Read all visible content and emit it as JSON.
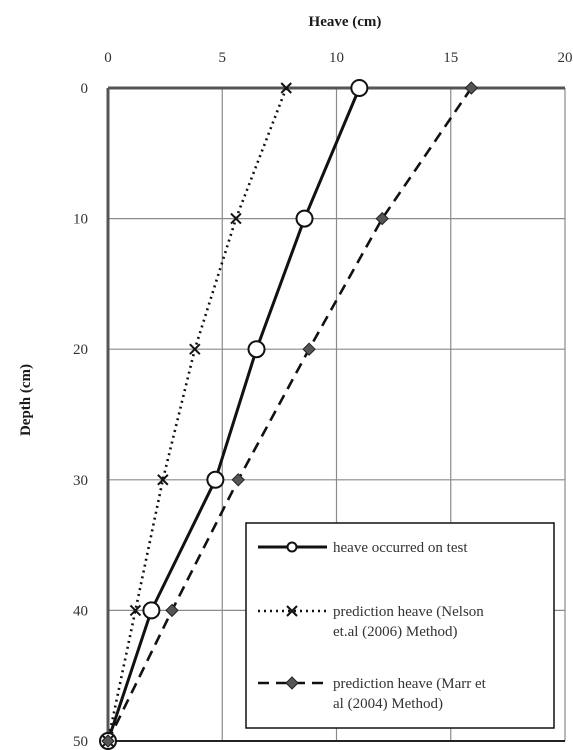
{
  "chart_data": {
    "type": "line",
    "xlabel": "Heave (cm)",
    "ylabel": "Depth (cm)",
    "xlim": [
      0,
      20
    ],
    "ylim": [
      0,
      50
    ],
    "x_axis_position": "top",
    "y_axis_inverted": true,
    "xticks": [
      "0",
      "5",
      "10",
      "15",
      "20"
    ],
    "yticks": [
      "0",
      "10",
      "20",
      "30",
      "40",
      "50"
    ],
    "grid": true,
    "legend_position": "bottom-right",
    "series": [
      {
        "name": "heave occurred on test",
        "line_style": "solid",
        "marker": "circle",
        "color": "#111111",
        "points": [
          {
            "x": 11.0,
            "y": 0
          },
          {
            "x": 8.6,
            "y": 10
          },
          {
            "x": 6.5,
            "y": 20
          },
          {
            "x": 4.7,
            "y": 30
          },
          {
            "x": 1.9,
            "y": 40
          },
          {
            "x": 0.0,
            "y": 50
          }
        ]
      },
      {
        "name": "prediction heave (Nelson et.al (2006) Method)",
        "line_style": "dotted",
        "marker": "x",
        "color": "#111111",
        "points": [
          {
            "x": 7.8,
            "y": 0
          },
          {
            "x": 5.6,
            "y": 10
          },
          {
            "x": 3.8,
            "y": 20
          },
          {
            "x": 2.4,
            "y": 30
          },
          {
            "x": 1.2,
            "y": 40
          },
          {
            "x": 0.0,
            "y": 50
          }
        ]
      },
      {
        "name": "prediction heave (Marr et al (2004) Method)",
        "line_style": "dashed",
        "marker": "diamond",
        "color": "#111111",
        "points": [
          {
            "x": 15.9,
            "y": 0
          },
          {
            "x": 12.0,
            "y": 10
          },
          {
            "x": 8.8,
            "y": 20
          },
          {
            "x": 5.7,
            "y": 30
          },
          {
            "x": 2.8,
            "y": 40
          },
          {
            "x": 0.0,
            "y": 50
          }
        ]
      }
    ],
    "legend_lines": [
      [
        "heave occurred on test"
      ],
      [
        "prediction heave (Nelson",
        "et.al (2006) Method)"
      ],
      [
        "prediction heave (Marr et",
        "al (2004) Method)"
      ]
    ]
  }
}
